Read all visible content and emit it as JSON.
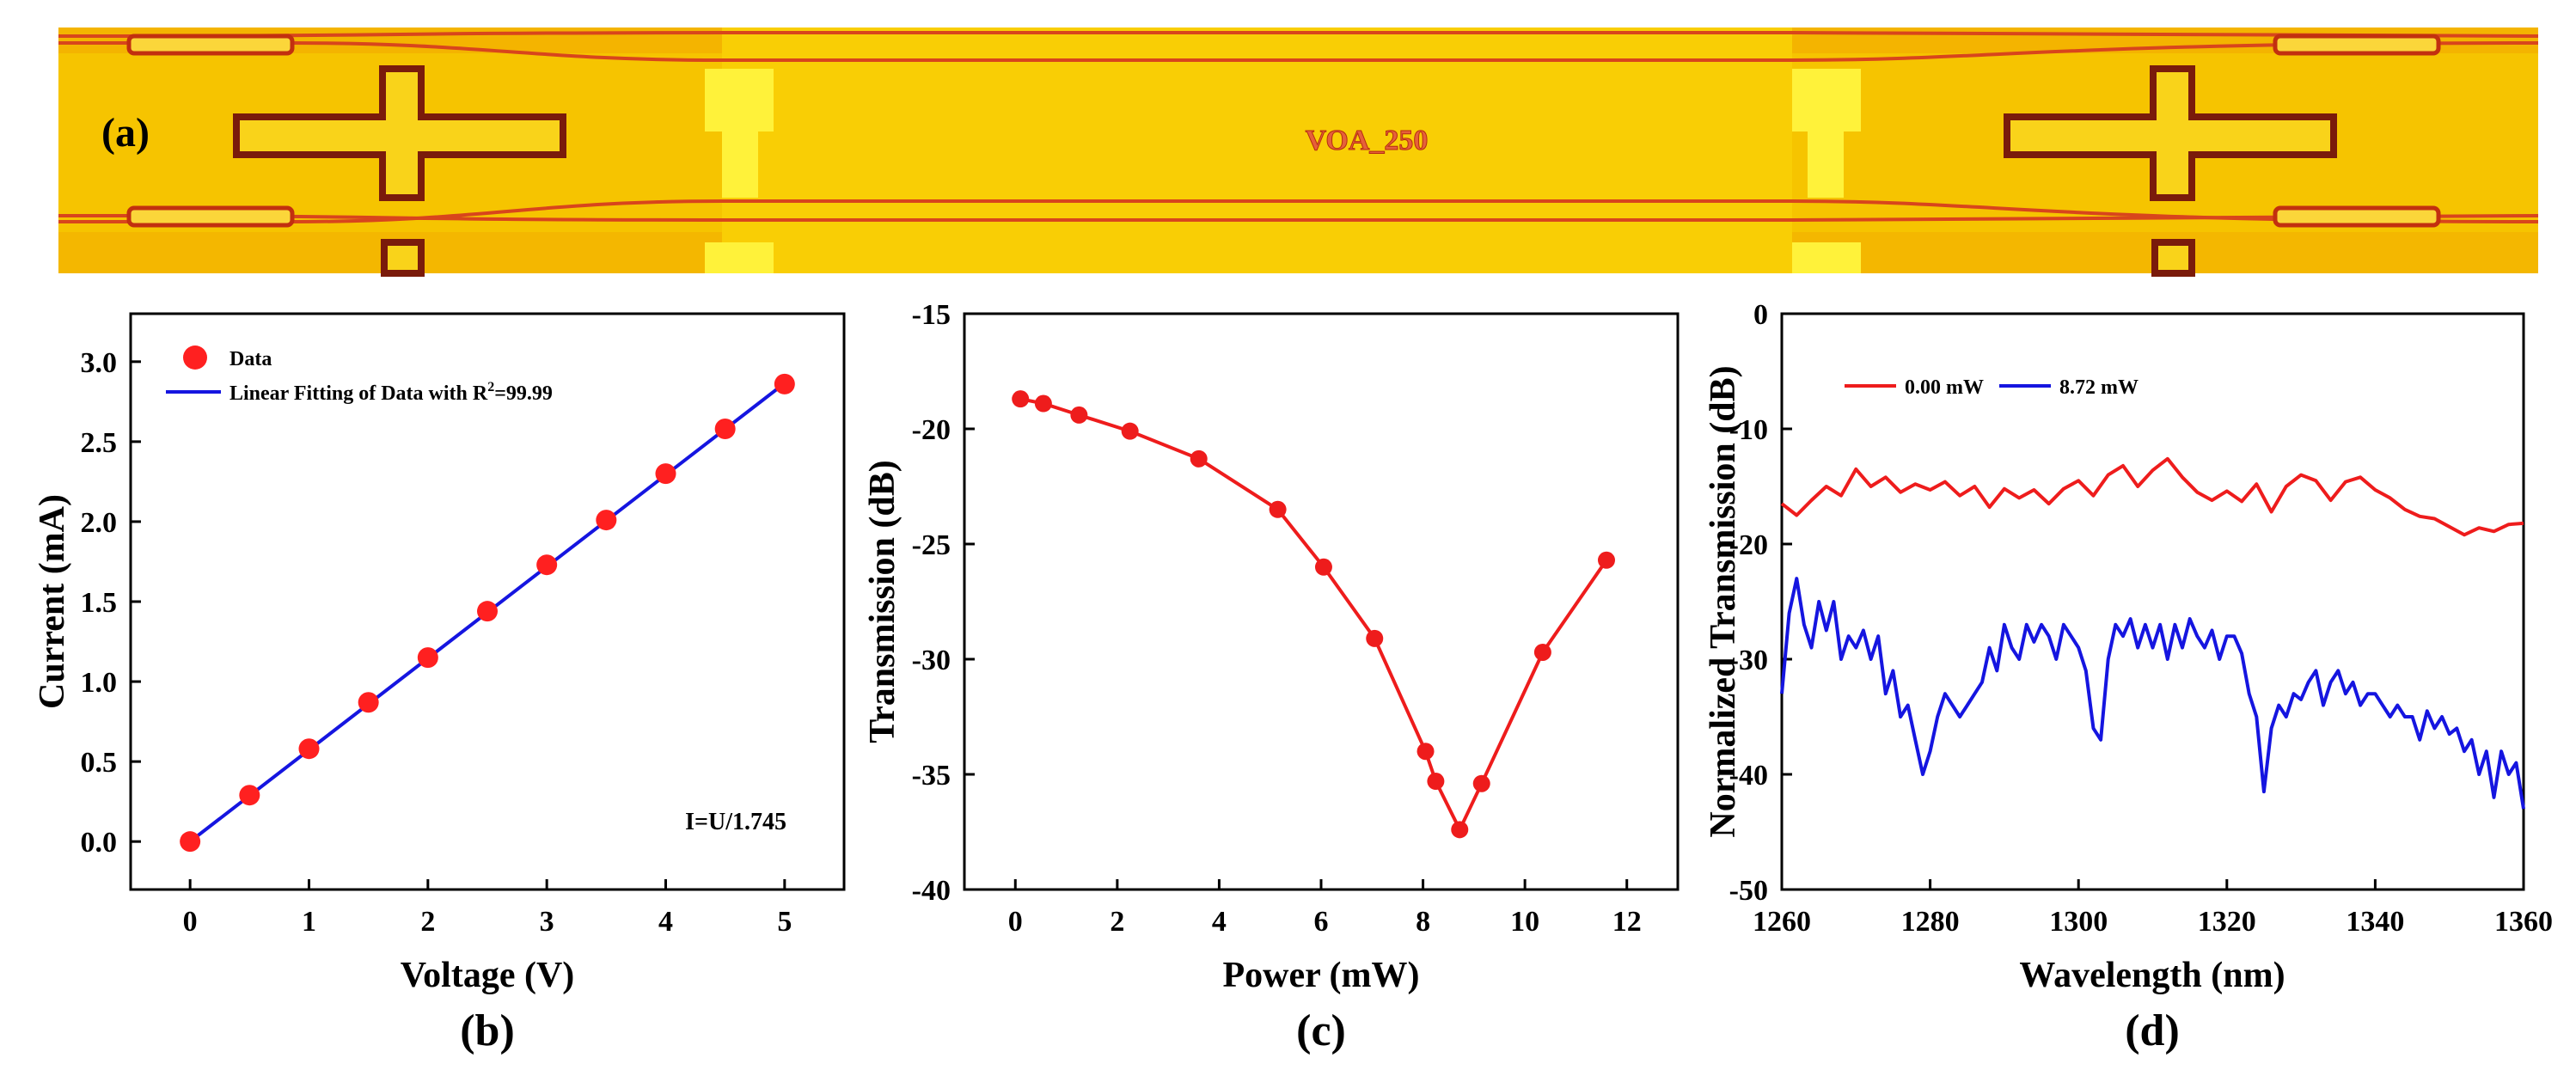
{
  "panel_a": {
    "label": "(a)",
    "chip_text": "VOA_250",
    "colors": {
      "substrate": "#f6c400",
      "highlight": "#fff23a",
      "waveguide": "#d8451c",
      "outline": "#7a1b0b"
    }
  },
  "chart_data": [
    {
      "panel": "b",
      "panel_label": "(b)",
      "type": "scatter",
      "title": "",
      "xlabel": "Voltage (V)",
      "ylabel": "Current (mA)",
      "xlim": [
        -0.5,
        5.5
      ],
      "ylim": [
        -0.3,
        3.3
      ],
      "xticks": [
        0,
        1,
        2,
        3,
        4,
        5
      ],
      "yticks": [
        0.0,
        0.5,
        1.0,
        1.5,
        2.0,
        2.5,
        3.0
      ],
      "ytick_labels": [
        "0.0",
        "0.5",
        "1.0",
        "1.5",
        "2.0",
        "2.5",
        "3.0"
      ],
      "series": [
        {
          "name": "Data",
          "style": "markers",
          "color": "#ff2020",
          "x": [
            0,
            0.5,
            1,
            1.5,
            2,
            2.5,
            3,
            3.5,
            4,
            4.5,
            5
          ],
          "y": [
            0.0,
            0.29,
            0.58,
            0.87,
            1.15,
            1.44,
            1.73,
            2.01,
            2.3,
            2.58,
            2.86
          ]
        },
        {
          "name": "Linear Fitting of Data with R",
          "name_sup": "2",
          "name_tail": "=99.99",
          "style": "line",
          "color": "#1515e0",
          "x": [
            0,
            5
          ],
          "y": [
            0.0,
            2.865
          ]
        }
      ],
      "annotation": "I=U/1.745",
      "legend": "top-left"
    },
    {
      "panel": "c",
      "panel_label": "(c)",
      "type": "line",
      "title": "",
      "xlabel": "Power (mW)",
      "ylabel": "Transmission (dB)",
      "xlim": [
        -1,
        13
      ],
      "ylim": [
        -40,
        -15
      ],
      "xticks": [
        0,
        2,
        4,
        6,
        8,
        10,
        12
      ],
      "yticks": [
        -40,
        -35,
        -30,
        -25,
        -20,
        -15
      ],
      "series": [
        {
          "name": "Transmission",
          "color": "#ee1c1c",
          "x": [
            0.1,
            0.55,
            1.25,
            2.25,
            3.6,
            5.15,
            6.05,
            7.05,
            8.05,
            8.25,
            8.72,
            9.15,
            10.35,
            11.6
          ],
          "y": [
            -18.7,
            -18.9,
            -19.4,
            -20.1,
            -21.3,
            -23.5,
            -26.0,
            -29.1,
            -34.0,
            -35.3,
            -37.4,
            -35.4,
            -29.7,
            -25.7
          ]
        }
      ]
    },
    {
      "panel": "d",
      "panel_label": "(d)",
      "type": "line",
      "title": "",
      "xlabel": "Wavelength (nm)",
      "ylabel": "Normalized Transmission (dB)",
      "xlim": [
        1260,
        1360
      ],
      "ylim": [
        -50,
        0
      ],
      "xticks": [
        1260,
        1280,
        1300,
        1320,
        1340,
        1360
      ],
      "yticks": [
        -50,
        -40,
        -30,
        -20,
        -10,
        0
      ],
      "legend": "top-left",
      "series": [
        {
          "name": "0.00 mW",
          "color": "#ee1c1c",
          "x": [
            1260,
            1262,
            1264,
            1266,
            1268,
            1270,
            1272,
            1274,
            1276,
            1278,
            1280,
            1282,
            1284,
            1286,
            1288,
            1290,
            1292,
            1294,
            1296,
            1298,
            1300,
            1302,
            1304,
            1306,
            1308,
            1310,
            1312,
            1314,
            1316,
            1318,
            1320,
            1322,
            1324,
            1326,
            1328,
            1330,
            1332,
            1334,
            1336,
            1338,
            1340,
            1342,
            1344,
            1346,
            1348,
            1350,
            1352,
            1354,
            1356,
            1358,
            1360
          ],
          "y": [
            -16.5,
            -17.5,
            -16.2,
            -15.0,
            -15.8,
            -13.5,
            -15.0,
            -14.2,
            -15.5,
            -14.8,
            -15.3,
            -14.6,
            -15.8,
            -15.0,
            -16.8,
            -15.2,
            -16.0,
            -15.3,
            -16.5,
            -15.2,
            -14.5,
            -15.8,
            -14.0,
            -13.2,
            -15.0,
            -13.6,
            -12.6,
            -14.2,
            -15.5,
            -16.2,
            -15.4,
            -16.3,
            -14.8,
            -17.2,
            -15.0,
            -14.0,
            -14.5,
            -16.2,
            -14.6,
            -14.2,
            -15.3,
            -16.0,
            -17.0,
            -17.6,
            -17.8,
            -18.5,
            -19.2,
            -18.6,
            -18.9,
            -18.3,
            -18.2
          ]
        },
        {
          "name": "8.72 mW",
          "color": "#1515e0",
          "x": [
            1260,
            1261,
            1262,
            1263,
            1264,
            1265,
            1266,
            1267,
            1268,
            1269,
            1270,
            1271,
            1272,
            1273,
            1274,
            1275,
            1276,
            1277,
            1278,
            1279,
            1280,
            1281,
            1282,
            1283,
            1284,
            1285,
            1286,
            1287,
            1288,
            1289,
            1290,
            1291,
            1292,
            1293,
            1294,
            1295,
            1296,
            1297,
            1298,
            1299,
            1300,
            1301,
            1302,
            1303,
            1304,
            1305,
            1306,
            1307,
            1308,
            1309,
            1310,
            1311,
            1312,
            1313,
            1314,
            1315,
            1316,
            1317,
            1318,
            1319,
            1320,
            1321,
            1322,
            1323,
            1324,
            1325,
            1326,
            1327,
            1328,
            1329,
            1330,
            1331,
            1332,
            1333,
            1334,
            1335,
            1336,
            1337,
            1338,
            1339,
            1340,
            1341,
            1342,
            1343,
            1344,
            1345,
            1346,
            1347,
            1348,
            1349,
            1350,
            1351,
            1352,
            1353,
            1354,
            1355,
            1356,
            1357,
            1358,
            1359,
            1360
          ],
          "y": [
            -33,
            -26,
            -23,
            -27,
            -29,
            -25,
            -27.5,
            -25,
            -30,
            -28,
            -29,
            -27.5,
            -30,
            -28,
            -33,
            -31,
            -35,
            -34,
            -37,
            -40,
            -38,
            -35,
            -33,
            -34,
            -35,
            -34,
            -33,
            -32,
            -29,
            -31,
            -27,
            -29,
            -30,
            -27,
            -28.5,
            -27,
            -28,
            -30,
            -27,
            -28,
            -29,
            -31,
            -36,
            -37,
            -30,
            -27,
            -28,
            -26.5,
            -29,
            -27,
            -29,
            -27,
            -30,
            -27,
            -29,
            -26.5,
            -28,
            -29,
            -27.5,
            -30,
            -28,
            -28,
            -29.5,
            -33,
            -35,
            -41.5,
            -36,
            -34,
            -35,
            -33,
            -33.5,
            -32,
            -31,
            -34,
            -32,
            -31,
            -33,
            -32,
            -34,
            -33,
            -33,
            -34,
            -35,
            -34,
            -35,
            -35,
            -37,
            -34.5,
            -36,
            -35,
            -36.5,
            -36,
            -38,
            -37,
            -40,
            -38,
            -42,
            -38,
            -40,
            -39,
            -43
          ]
        }
      ]
    }
  ]
}
